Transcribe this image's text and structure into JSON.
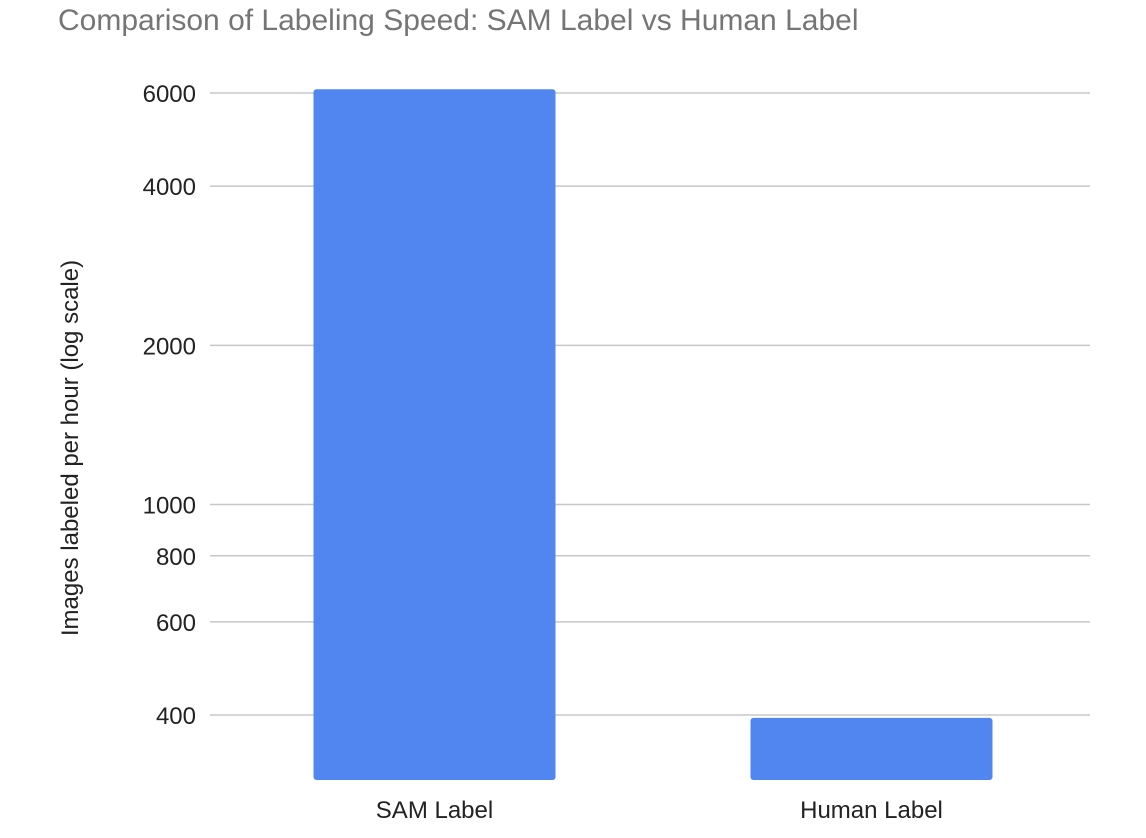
{
  "chart_data": {
    "type": "bar",
    "title": "Comparison of Labeling Speed: SAM Label vs Human Label",
    "xlabel": "",
    "ylabel": "Images labeled per hour (log scale)",
    "y_scale": "log",
    "ylim": [
      300,
      6000
    ],
    "yticks": [
      400,
      600,
      800,
      1000,
      2000,
      4000,
      6000
    ],
    "categories": [
      "SAM Label",
      "Human Label"
    ],
    "values": [
      6100,
      395
    ],
    "grid": true,
    "legend": "none",
    "colors": {
      "bar": "#5185f0",
      "grid": "#c8c8c8",
      "tick_text": "#222222",
      "title_text": "#757575"
    }
  }
}
